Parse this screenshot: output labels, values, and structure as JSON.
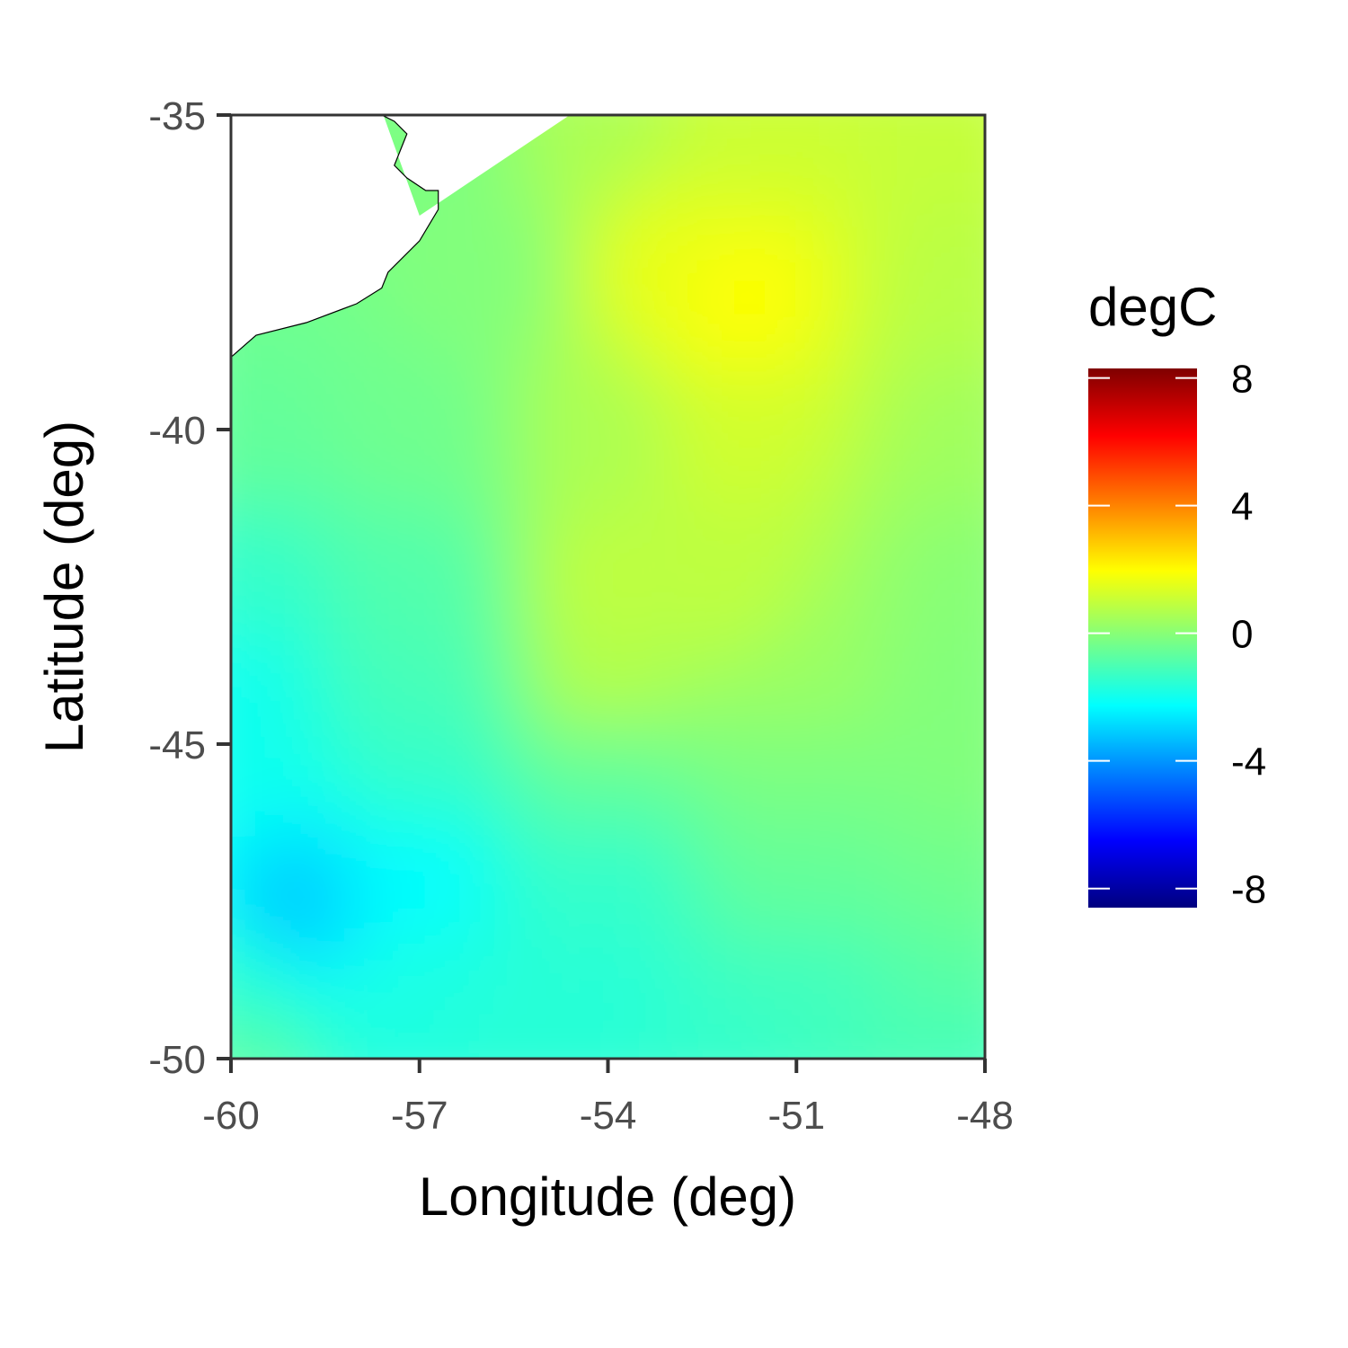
{
  "chart_data": {
    "type": "heatmap",
    "title": "",
    "xlabel": "Longitude (deg)",
    "ylabel": "Latitude (deg)",
    "xlim": [
      -60,
      -48
    ],
    "ylim": [
      -50,
      -35
    ],
    "x_ticks": [
      -60,
      -57,
      -54,
      -51,
      -48
    ],
    "y_ticks": [
      -50,
      -45,
      -40,
      -35
    ],
    "grid": false,
    "legend": {
      "title": "degC",
      "placement": "right",
      "limits": [
        -8.6,
        8.3
      ],
      "breaks": [
        8,
        4,
        0,
        -4,
        -8
      ],
      "colors": [
        "#00007F",
        "#0000FF",
        "#007FFF",
        "#00FFFF",
        "#7FFF7F",
        "#FFFF00",
        "#FF7F00",
        "#FF0000",
        "#7F0000"
      ]
    },
    "field_note_samples": [
      {
        "lon": -60,
        "lat": -35,
        "value": -0.4
      },
      {
        "lon": -57,
        "lat": -35,
        "value": -0.2
      },
      {
        "lon": -54,
        "lat": -35,
        "value": 0.6
      },
      {
        "lon": -52,
        "lat": -35,
        "value": 1.1
      },
      {
        "lon": -48,
        "lat": -35,
        "value": 1.0
      },
      {
        "lon": -60,
        "lat": -37.5,
        "value": -0.4
      },
      {
        "lon": -56,
        "lat": -37.5,
        "value": -0.1
      },
      {
        "lon": -53,
        "lat": -37.5,
        "value": 1.6
      },
      {
        "lon": -52,
        "lat": -38,
        "value": 2.0
      },
      {
        "lon": -48,
        "lat": -38,
        "value": 0.8
      },
      {
        "lon": -60,
        "lat": -40,
        "value": -0.6
      },
      {
        "lon": -57,
        "lat": -40,
        "value": -0.4
      },
      {
        "lon": -54,
        "lat": -40,
        "value": 0.6
      },
      {
        "lon": -52,
        "lat": -40,
        "value": 1.2
      },
      {
        "lon": -48,
        "lat": -40,
        "value": 0.4
      },
      {
        "lon": -60,
        "lat": -42.5,
        "value": -1.4
      },
      {
        "lon": -57,
        "lat": -42.5,
        "value": -0.9
      },
      {
        "lon": -54,
        "lat": -42.5,
        "value": 0.9
      },
      {
        "lon": -52,
        "lat": -42.5,
        "value": 0.9
      },
      {
        "lon": -48,
        "lat": -42.5,
        "value": 0.0
      },
      {
        "lon": -60,
        "lat": -44,
        "value": -2.0
      },
      {
        "lon": -57,
        "lat": -44,
        "value": -1.1
      },
      {
        "lon": -54,
        "lat": -44,
        "value": 0.7
      },
      {
        "lon": -51,
        "lat": -44,
        "value": 0.3
      },
      {
        "lon": -48,
        "lat": -44,
        "value": -0.1
      },
      {
        "lon": -60,
        "lat": -45.5,
        "value": -2.0
      },
      {
        "lon": -57,
        "lat": -45.5,
        "value": -1.4
      },
      {
        "lon": -54,
        "lat": -45.5,
        "value": -0.6
      },
      {
        "lon": -51,
        "lat": -45.5,
        "value": -0.2
      },
      {
        "lon": -48,
        "lat": -45.5,
        "value": -0.1
      },
      {
        "lon": -59,
        "lat": -47.5,
        "value": -3.1
      },
      {
        "lon": -57,
        "lat": -47,
        "value": -2.3
      },
      {
        "lon": -54,
        "lat": -47,
        "value": -1.4
      },
      {
        "lon": -51,
        "lat": -47,
        "value": -0.6
      },
      {
        "lon": -48,
        "lat": -47,
        "value": -0.4
      },
      {
        "lon": -60,
        "lat": -49,
        "value": -1.5
      },
      {
        "lon": -57,
        "lat": -49,
        "value": -1.8
      },
      {
        "lon": -54,
        "lat": -49,
        "value": -1.6
      },
      {
        "lon": -51,
        "lat": -49,
        "value": -1.2
      },
      {
        "lon": -48,
        "lat": -49,
        "value": -0.8
      },
      {
        "lon": -60,
        "lat": -50,
        "value": -0.7
      },
      {
        "lon": -56,
        "lat": -50,
        "value": -1.6
      },
      {
        "lon": -52,
        "lat": -50,
        "value": -1.4
      },
      {
        "lon": -48,
        "lat": -50,
        "value": -1.2
      }
    ],
    "coastline": [
      [
        -57.6,
        -35.0
      ],
      [
        -57.4,
        -35.1
      ],
      [
        -57.2,
        -35.3
      ],
      [
        -57.3,
        -35.55
      ],
      [
        -57.4,
        -35.8
      ],
      [
        -57.2,
        -36.0
      ],
      [
        -56.9,
        -36.2
      ],
      [
        -56.7,
        -36.2
      ],
      [
        -56.7,
        -36.5
      ],
      [
        -57.0,
        -37.0
      ],
      [
        -57.5,
        -37.5
      ],
      [
        -57.6,
        -37.75
      ],
      [
        -58.0,
        -38.0
      ],
      [
        -58.8,
        -38.3
      ],
      [
        -59.6,
        -38.5
      ],
      [
        -60.0,
        -38.85
      ]
    ],
    "coast_land_side": "northwest"
  }
}
